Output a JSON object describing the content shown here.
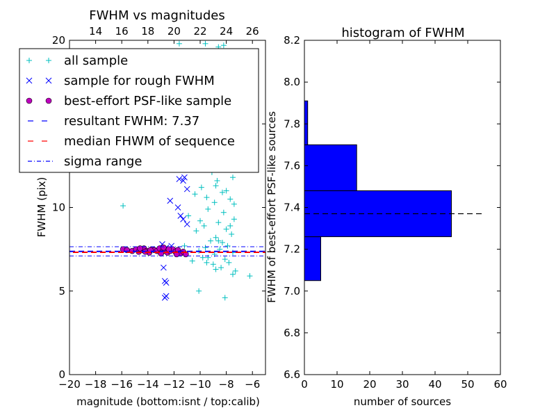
{
  "chart_data": [
    {
      "type": "scatter",
      "title": "FWHM vs magnitudes",
      "xlabel": "magnitude (bottom:isnt / top:calib)",
      "ylabel": "FWHM (pix)",
      "xlim": [
        -20,
        -5
      ],
      "ylim": [
        0,
        20
      ],
      "x_ticks": [
        "−20",
        "−18",
        "−16",
        "−14",
        "−12",
        "−10",
        "−8",
        "−6"
      ],
      "x_tick_values": [
        -20,
        -18,
        -16,
        -14,
        -12,
        -10,
        -8,
        -6
      ],
      "top_ticks": [
        "14",
        "16",
        "18",
        "20",
        "22",
        "24",
        "26"
      ],
      "top_tick_positions": [
        -18,
        -16,
        -14,
        -12,
        -10,
        -8,
        -6
      ],
      "y_ticks": [
        "0",
        "5",
        "10",
        "15",
        "20"
      ],
      "y_tick_values": [
        0,
        5,
        10,
        15,
        20
      ],
      "legend_position": "upper-left",
      "legend": [
        {
          "label": "all sample",
          "marker": "+",
          "color": "#00bfbf"
        },
        {
          "label": "sample for rough FWHM",
          "marker": "x",
          "color": "#0000ff"
        },
        {
          "label": "best-effort PSF-like sample",
          "marker": "o",
          "color": "#bf00bf"
        },
        {
          "label": "resultant FWHM: 7.37",
          "marker": "dashed",
          "color": "#0000ff"
        },
        {
          "label": "median FHWM of sequence",
          "marker": "dashed",
          "color": "#ff0000"
        },
        {
          "label": "sigma range",
          "marker": "dashdot",
          "color": "#0000ff"
        }
      ],
      "lines": {
        "resultant_fwhm": 7.37,
        "median_fwhm": 7.4,
        "sigma_range": [
          7.1,
          7.65
        ]
      },
      "series": [
        {
          "name": "all sample",
          "color": "#00bfbf",
          "points": [
            [
              -15.9,
              10.1
            ],
            [
              -10.1,
              5.0
            ],
            [
              -8.1,
              4.6
            ],
            [
              -6.2,
              5.9
            ],
            [
              -9.5,
              6.7
            ],
            [
              -9.8,
              7.0
            ],
            [
              -8.8,
              6.3
            ],
            [
              -7.5,
              6.0
            ],
            [
              -9.3,
              19.3
            ],
            [
              -8.6,
              19.6
            ],
            [
              -8.2,
              19.7
            ],
            [
              -9.6,
              19.8
            ],
            [
              -11.6,
              19.8
            ],
            [
              -10.6,
              18.0
            ],
            [
              -10.0,
              18.2
            ],
            [
              -7.9,
              17.9
            ],
            [
              -9.2,
              17.3
            ],
            [
              -8.4,
              16.5
            ],
            [
              -10.8,
              16.1
            ],
            [
              -7.7,
              16.4
            ],
            [
              -8.9,
              15.7
            ],
            [
              -9.6,
              15.2
            ],
            [
              -8.1,
              15.0
            ],
            [
              -7.6,
              14.2
            ],
            [
              -9.0,
              14.4
            ],
            [
              -10.2,
              14.5
            ],
            [
              -8.5,
              13.6
            ],
            [
              -9.7,
              13.3
            ],
            [
              -7.8,
              13.0
            ],
            [
              -8.3,
              12.6
            ],
            [
              -10.7,
              12.4
            ],
            [
              -9.1,
              12.1
            ],
            [
              -7.5,
              11.8
            ],
            [
              -8.7,
              11.6
            ],
            [
              -9.9,
              11.2
            ],
            [
              -8.0,
              11.0
            ],
            [
              -10.4,
              10.8
            ],
            [
              -7.7,
              10.5
            ],
            [
              -8.9,
              10.3
            ],
            [
              -9.4,
              9.9
            ],
            [
              -8.2,
              9.7
            ],
            [
              -10.9,
              9.5
            ],
            [
              -7.4,
              9.3
            ],
            [
              -8.6,
              9.1
            ],
            [
              -9.7,
              8.9
            ],
            [
              -8.0,
              8.7
            ],
            [
              -10.3,
              8.6
            ],
            [
              -7.6,
              8.4
            ],
            [
              -8.8,
              8.2
            ],
            [
              -9.2,
              8.0
            ],
            [
              -8.3,
              7.9
            ],
            [
              -11.2,
              7.7
            ],
            [
              -7.9,
              7.7
            ],
            [
              -9.6,
              7.6
            ],
            [
              -8.5,
              7.5
            ],
            [
              -10.1,
              7.4
            ],
            [
              -7.5,
              7.3
            ],
            [
              -8.9,
              7.2
            ],
            [
              -9.4,
              7.0
            ],
            [
              -8.1,
              6.9
            ],
            [
              -10.6,
              6.8
            ],
            [
              -7.8,
              6.7
            ],
            [
              -9.0,
              6.6
            ],
            [
              -8.4,
              6.4
            ],
            [
              -7.3,
              6.2
            ],
            [
              -8.7,
              12.9
            ],
            [
              -8.0,
              13.8
            ],
            [
              -9.3,
              14.9
            ],
            [
              -8.5,
              16.0
            ],
            [
              -7.9,
              15.4
            ],
            [
              -8.8,
              11.3
            ],
            [
              -7.4,
              10.2
            ],
            [
              -8.2,
              12.3
            ],
            [
              -9.5,
              10.6
            ],
            [
              -7.7,
              8.9
            ],
            [
              -8.6,
              8.0
            ],
            [
              -10.0,
              9.2
            ],
            [
              -8.3,
              10.9
            ]
          ]
        },
        {
          "name": "sample for rough FWHM",
          "color": "#0000ff",
          "points": [
            [
              -12.7,
              4.6
            ],
            [
              -12.6,
              4.7
            ],
            [
              -12.7,
              5.6
            ],
            [
              -12.6,
              5.5
            ],
            [
              -12.8,
              6.4
            ],
            [
              -12.9,
              7.8
            ],
            [
              -12.3,
              10.4
            ],
            [
              -11.7,
              10.0
            ],
            [
              -11.3,
              9.3
            ],
            [
              -11.5,
              9.5
            ],
            [
              -11.0,
              9.0
            ],
            [
              -11.6,
              11.7
            ],
            [
              -11.3,
              11.6
            ],
            [
              -11.2,
              11.8
            ],
            [
              -11.0,
              11.1
            ],
            [
              -12.6,
              7.6
            ],
            [
              -12.2,
              7.7
            ]
          ]
        },
        {
          "name": "best-effort PSF-like sample",
          "color": "#bf00bf",
          "points": [
            [
              -15.9,
              7.5
            ],
            [
              -15.6,
              7.45
            ],
            [
              -15.2,
              7.4
            ],
            [
              -14.9,
              7.5
            ],
            [
              -14.7,
              7.35
            ],
            [
              -14.5,
              7.45
            ],
            [
              -14.3,
              7.55
            ],
            [
              -14.1,
              7.4
            ],
            [
              -13.9,
              7.3
            ],
            [
              -13.7,
              7.5
            ],
            [
              -13.5,
              7.45
            ],
            [
              -13.3,
              7.4
            ],
            [
              -13.1,
              7.55
            ],
            [
              -12.9,
              7.35
            ],
            [
              -12.7,
              7.45
            ],
            [
              -12.5,
              7.3
            ],
            [
              -12.3,
              7.4
            ],
            [
              -12.1,
              7.5
            ],
            [
              -11.9,
              7.35
            ],
            [
              -11.7,
              7.45
            ],
            [
              -11.5,
              7.25
            ],
            [
              -11.3,
              7.35
            ],
            [
              -11.1,
              7.2
            ],
            [
              -14.6,
              7.55
            ],
            [
              -13.8,
              7.45
            ],
            [
              -12.8,
              7.6
            ],
            [
              -11.8,
              7.2
            ],
            [
              -13.0,
              7.25
            ],
            [
              -14.2,
              7.35
            ],
            [
              -12.4,
              7.5
            ]
          ]
        }
      ]
    },
    {
      "type": "bar",
      "title": "histogram of FWHM",
      "xlabel": "number of sources",
      "ylabel": "FWHM of best-effort PSF-like sources",
      "xlim": [
        0,
        60
      ],
      "ylim": [
        6.6,
        8.2
      ],
      "x_ticks": [
        "0",
        "10",
        "20",
        "30",
        "40",
        "50",
        "60"
      ],
      "x_tick_values": [
        0,
        10,
        20,
        30,
        40,
        50,
        60
      ],
      "y_ticks": [
        "6.6",
        "6.8",
        "7.0",
        "7.2",
        "7.4",
        "7.6",
        "7.8",
        "8.0",
        "8.2"
      ],
      "y_tick_values": [
        6.6,
        6.8,
        7.0,
        7.2,
        7.4,
        7.6,
        7.8,
        8.0,
        8.2
      ],
      "orientation": "horizontal",
      "color": "#0000ff",
      "bins": [
        {
          "from": 7.05,
          "to": 7.26,
          "count": 5
        },
        {
          "from": 7.26,
          "to": 7.48,
          "count": 45
        },
        {
          "from": 7.48,
          "to": 7.7,
          "count": 16
        },
        {
          "from": 7.7,
          "to": 7.91,
          "count": 1
        }
      ],
      "reference_line": 7.37
    }
  ]
}
